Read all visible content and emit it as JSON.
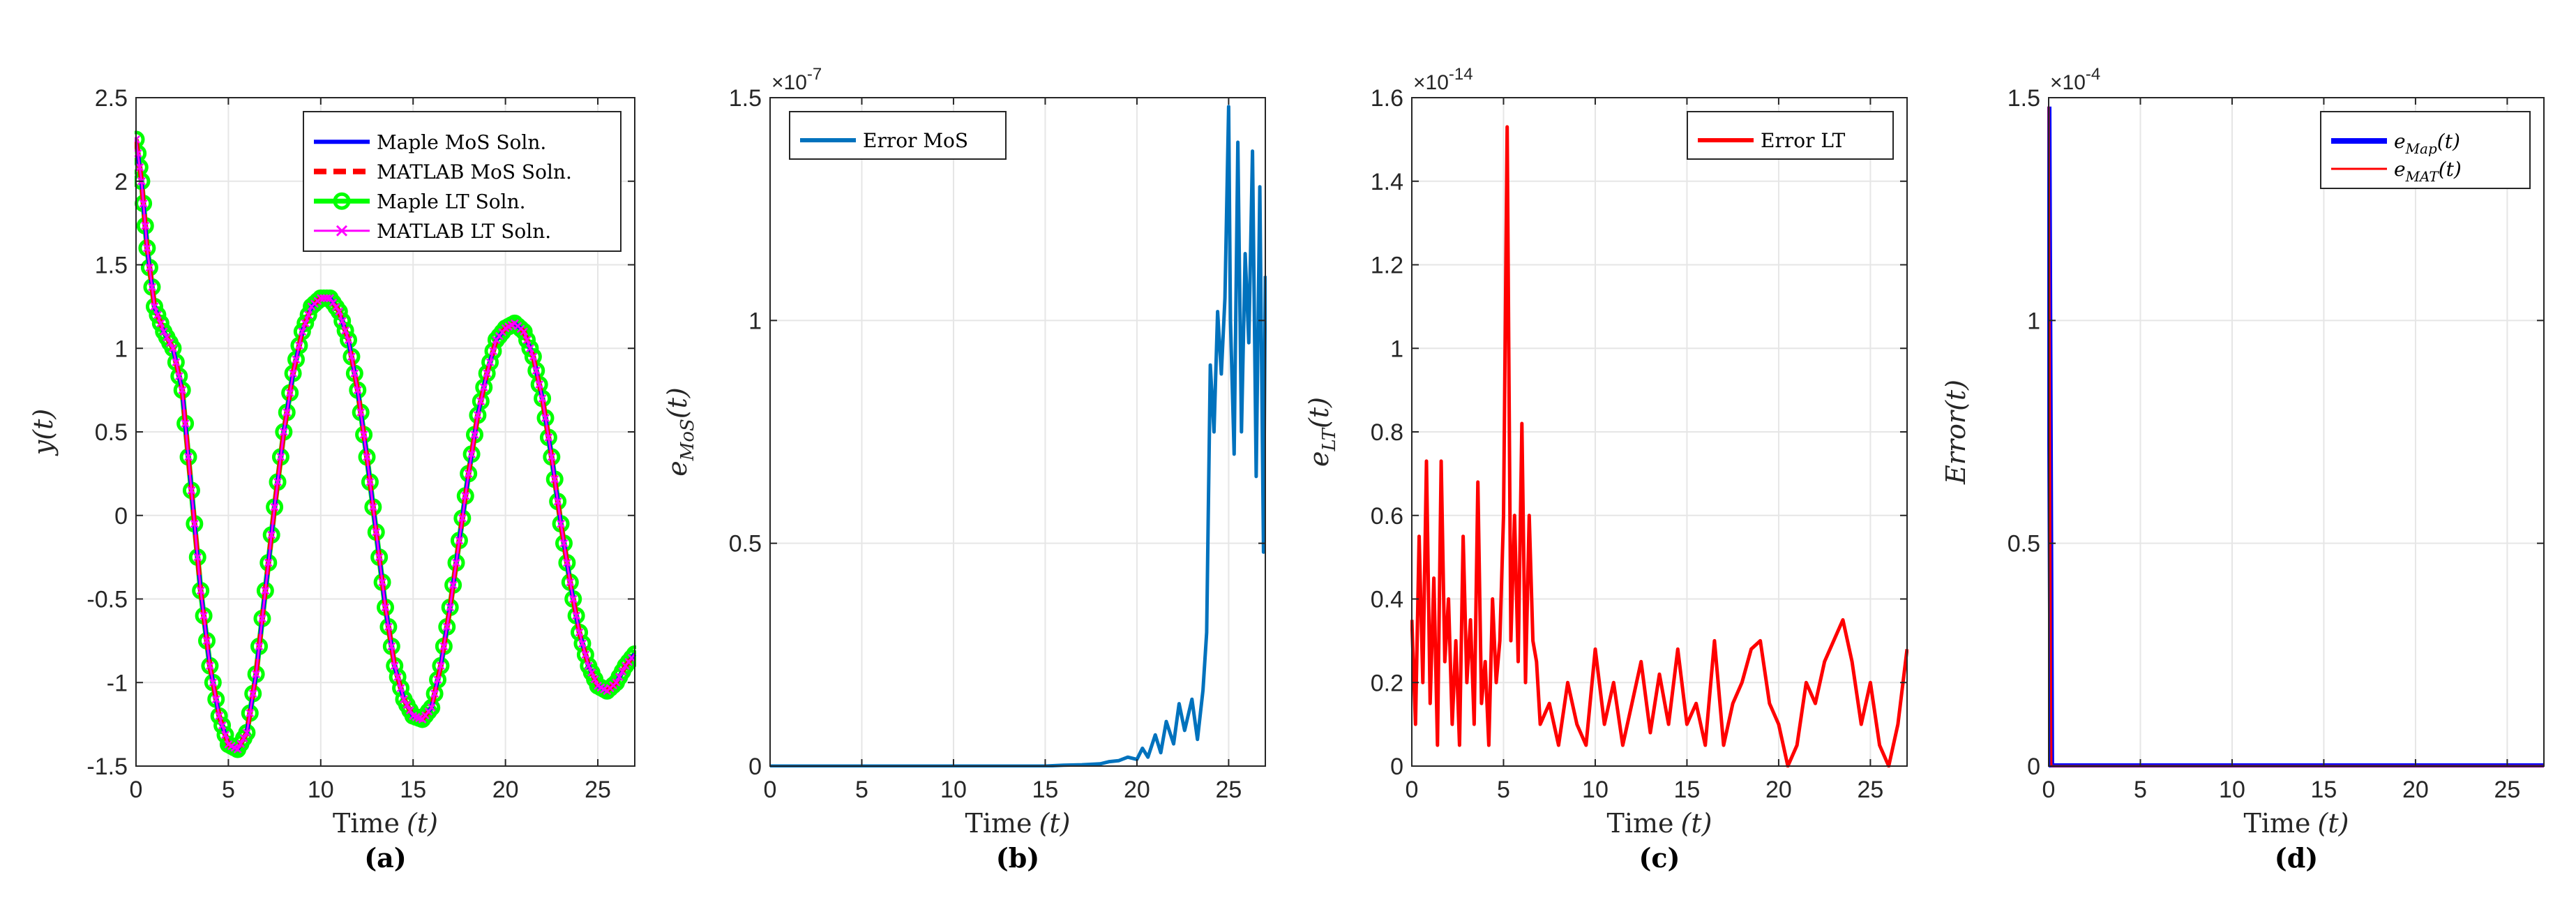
{
  "figure": {
    "colors": {
      "blue": "#0000ff",
      "red": "#ff0000",
      "green": "#00ff00",
      "magenta": "#ff00ff",
      "matlab_blue": "#0072bd",
      "grid": "#e6e6e6",
      "axis": "#262626"
    }
  },
  "chart_data": [
    {
      "id": "a",
      "type": "line",
      "caption": "(a)",
      "xlabel": "Time",
      "xlabel_var": "(t)",
      "ylabel": "y(t)",
      "xlim": [
        0,
        27
      ],
      "ylim": [
        -1.5,
        2.5
      ],
      "xticks": [
        0,
        5,
        10,
        15,
        20,
        25
      ],
      "yticks": [
        -1.5,
        -1,
        -0.5,
        0,
        0.5,
        1,
        1.5,
        2,
        2.5
      ],
      "ytick_labels": [
        "-1.5",
        "-1",
        "-0.5",
        "0",
        "0.5",
        "1",
        "1.5",
        "2",
        "2.5"
      ],
      "exponent": "",
      "legend_position": "top-right",
      "series": [
        {
          "name": "Maple MoS Soln.",
          "legend_label": "Maple MoS Soln.",
          "color": "#0000ff",
          "style": "solid",
          "x": [
            0,
            0.3,
            0.6,
            1,
            1.5,
            2,
            2.5,
            3,
            3.5,
            4,
            4.5,
            5,
            5.5,
            6,
            6.5,
            7,
            7.5,
            8,
            8.5,
            9,
            9.5,
            10,
            10.5,
            11,
            11.5,
            12,
            12.5,
            13,
            13.5,
            14,
            14.5,
            15,
            15.5,
            16,
            16.5,
            17,
            17.5,
            18,
            18.5,
            19,
            19.5,
            20,
            20.5,
            21,
            21.5,
            22,
            22.5,
            23,
            23.5,
            24,
            24.5,
            25,
            25.5,
            26,
            26.5,
            27
          ],
          "y": [
            2.25,
            2.0,
            1.6,
            1.25,
            1.1,
            1.0,
            0.75,
            0.15,
            -0.45,
            -0.9,
            -1.2,
            -1.37,
            -1.4,
            -1.3,
            -0.95,
            -0.45,
            0.05,
            0.5,
            0.85,
            1.1,
            1.25,
            1.3,
            1.3,
            1.22,
            1.05,
            0.75,
            0.35,
            -0.1,
            -0.55,
            -0.9,
            -1.1,
            -1.2,
            -1.22,
            -1.15,
            -0.9,
            -0.55,
            -0.15,
            0.25,
            0.6,
            0.85,
            1.05,
            1.12,
            1.15,
            1.1,
            0.95,
            0.7,
            0.35,
            -0.05,
            -0.4,
            -0.7,
            -0.9,
            -1.02,
            -1.05,
            -1.0,
            -0.9,
            -0.83
          ]
        },
        {
          "name": "MATLAB MoS Soln.",
          "legend_label": "MATLAB MoS Soln.",
          "color": "#ff0000",
          "style": "dashed",
          "same_as": 0
        },
        {
          "name": "Maple LT Soln.",
          "legend_label": "Maple LT Soln.",
          "color": "#00ff00",
          "style": "solid-circle",
          "same_as": 0
        },
        {
          "name": "MATLAB LT Soln.",
          "legend_label": "MATLAB LT Soln.",
          "color": "#ff00ff",
          "style": "solid-x",
          "same_as": 0
        }
      ]
    },
    {
      "id": "b",
      "type": "line",
      "caption": "(b)",
      "xlabel": "Time",
      "xlabel_var": "(t)",
      "ylabel": "e",
      "ylabel_sub": "MoS",
      "ylabel_tail": "(t)",
      "xlim": [
        0,
        27
      ],
      "ylim": [
        0,
        1.5
      ],
      "xticks": [
        0,
        5,
        10,
        15,
        20,
        25
      ],
      "yticks": [
        0,
        0.5,
        1,
        1.5
      ],
      "ytick_labels": [
        "0",
        "0.5",
        "1",
        "1.5"
      ],
      "exponent": "×10",
      "exponent_power": "-7",
      "legend_position": "top-left",
      "series": [
        {
          "name": "Error MoS",
          "legend_label": "Error MoS",
          "color": "#0072bd",
          "style": "solid",
          "x": [
            0,
            5,
            10,
            15,
            16,
            17,
            18,
            18.5,
            19,
            19.5,
            20,
            20.3,
            20.6,
            21,
            21.3,
            21.6,
            22,
            22.3,
            22.6,
            23,
            23.3,
            23.6,
            23.8,
            24,
            24.2,
            24.4,
            24.6,
            24.8,
            25,
            25.1,
            25.3,
            25.5,
            25.7,
            25.9,
            26.1,
            26.3,
            26.5,
            26.7,
            26.9,
            27
          ],
          "y": [
            0,
            0,
            0,
            0,
            0.002,
            0.003,
            0.005,
            0.01,
            0.012,
            0.02,
            0.015,
            0.04,
            0.02,
            0.07,
            0.03,
            0.1,
            0.05,
            0.14,
            0.08,
            0.15,
            0.06,
            0.17,
            0.3,
            0.9,
            0.75,
            1.02,
            0.88,
            1.05,
            1.48,
            1.0,
            0.7,
            1.4,
            0.75,
            1.15,
            0.95,
            1.38,
            0.65,
            1.3,
            0.48,
            1.1
          ]
        }
      ]
    },
    {
      "id": "c",
      "type": "line",
      "caption": "(c)",
      "xlabel": "Time",
      "xlabel_var": "(t)",
      "ylabel": "e",
      "ylabel_sub": "LT",
      "ylabel_tail": "(t)",
      "xlim": [
        0,
        27
      ],
      "ylim": [
        0,
        1.6
      ],
      "xticks": [
        0,
        5,
        10,
        15,
        20,
        25
      ],
      "yticks": [
        0,
        0.2,
        0.4,
        0.6,
        0.8,
        1,
        1.2,
        1.4,
        1.6
      ],
      "ytick_labels": [
        "0",
        "0.2",
        "0.4",
        "0.6",
        "0.8",
        "1",
        "1.2",
        "1.4",
        "1.6"
      ],
      "exponent": "×10",
      "exponent_power": "-14",
      "legend_position": "top-right",
      "series": [
        {
          "name": "Error LT",
          "legend_label": "Error LT",
          "color": "#ff0000",
          "style": "solid",
          "x": [
            0,
            0.2,
            0.4,
            0.6,
            0.8,
            1.0,
            1.2,
            1.4,
            1.6,
            1.8,
            2.0,
            2.2,
            2.4,
            2.6,
            2.8,
            3.0,
            3.2,
            3.4,
            3.6,
            3.8,
            4.0,
            4.2,
            4.4,
            4.6,
            4.8,
            5.0,
            5.2,
            5.4,
            5.6,
            5.8,
            6.0,
            6.2,
            6.4,
            6.6,
            6.8,
            7.0,
            7.5,
            8.0,
            8.5,
            9.0,
            9.5,
            10.0,
            10.5,
            11.0,
            11.5,
            12.0,
            12.5,
            13.0,
            13.5,
            14.0,
            14.5,
            15.0,
            15.5,
            16.0,
            16.5,
            17.0,
            17.5,
            18.0,
            18.5,
            19.0,
            19.5,
            20.0,
            20.5,
            21.0,
            21.5,
            22.0,
            22.5,
            23.0,
            23.5,
            24.0,
            24.5,
            25.0,
            25.5,
            26.0,
            26.5,
            27.0
          ],
          "y": [
            0.35,
            0.1,
            0.55,
            0.2,
            0.73,
            0.15,
            0.45,
            0.05,
            0.73,
            0.25,
            0.4,
            0.1,
            0.3,
            0.05,
            0.55,
            0.2,
            0.35,
            0.1,
            0.68,
            0.15,
            0.25,
            0.05,
            0.4,
            0.2,
            0.3,
            0.6,
            1.53,
            0.3,
            0.6,
            0.25,
            0.82,
            0.2,
            0.6,
            0.3,
            0.25,
            0.1,
            0.15,
            0.05,
            0.2,
            0.1,
            0.05,
            0.28,
            0.1,
            0.2,
            0.05,
            0.15,
            0.25,
            0.08,
            0.22,
            0.1,
            0.28,
            0.1,
            0.15,
            0.05,
            0.3,
            0.05,
            0.15,
            0.2,
            0.28,
            0.3,
            0.15,
            0.1,
            0.0,
            0.05,
            0.2,
            0.15,
            0.25,
            0.3,
            0.35,
            0.25,
            0.1,
            0.2,
            0.05,
            0.0,
            0.1,
            0.28
          ]
        }
      ]
    },
    {
      "id": "d",
      "type": "line",
      "caption": "(d)",
      "xlabel": "Time",
      "xlabel_var": "(t)",
      "ylabel": "Error(t)",
      "xlim": [
        0,
        27
      ],
      "ylim": [
        0,
        1.5
      ],
      "xticks": [
        0,
        5,
        10,
        15,
        20,
        25
      ],
      "yticks": [
        0,
        0.5,
        1,
        1.5
      ],
      "ytick_labels": [
        "0",
        "0.5",
        "1",
        "1.5"
      ],
      "exponent": "×10",
      "exponent_power": "-4",
      "legend_position": "top-right",
      "series": [
        {
          "name": "e_Map(t)",
          "legend_label": "e",
          "legend_sub": "Map",
          "legend_tail": "(t)",
          "color": "#0000ff",
          "style": "thick",
          "x": [
            0,
            0.15,
            0.3,
            5,
            10,
            15,
            20,
            25,
            27
          ],
          "y": [
            1.48,
            0.0,
            0.0,
            0,
            0,
            0,
            0,
            0,
            0
          ]
        },
        {
          "name": "e_MAT(t)",
          "legend_label": "e",
          "legend_sub": "MAT",
          "legend_tail": "(t)",
          "color": "#ff0000",
          "style": "thin",
          "x": [
            0,
            0.15,
            0.3,
            5,
            10,
            15,
            20,
            25,
            27
          ],
          "y": [
            1.48,
            0.0,
            0.0,
            0,
            0,
            0,
            0,
            0,
            0
          ]
        }
      ]
    }
  ]
}
